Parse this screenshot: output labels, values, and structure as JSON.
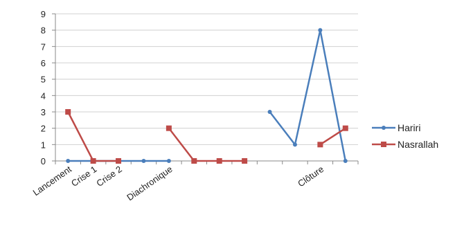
{
  "chart_data": {
    "type": "line",
    "categories": [
      "Lancement",
      "Crise 1",
      "Crise 2",
      "",
      "Diachronique",
      "",
      "",
      "",
      "",
      "",
      "Clôture",
      ""
    ],
    "series": [
      {
        "name": "Hariri",
        "color": "#4a7ebb",
        "marker": "circle",
        "values": [
          0,
          0,
          0,
          0,
          0,
          null,
          null,
          null,
          3,
          1,
          8,
          0
        ]
      },
      {
        "name": "Nasrallah",
        "color": "#be4b48",
        "marker": "square",
        "values": [
          3,
          0,
          0,
          null,
          2,
          0,
          0,
          0,
          null,
          null,
          1,
          2
        ]
      }
    ],
    "ylim": [
      0,
      9
    ],
    "yticks": [
      0,
      1,
      2,
      3,
      4,
      5,
      6,
      7,
      8,
      9
    ],
    "grid": true,
    "legend": "right"
  }
}
